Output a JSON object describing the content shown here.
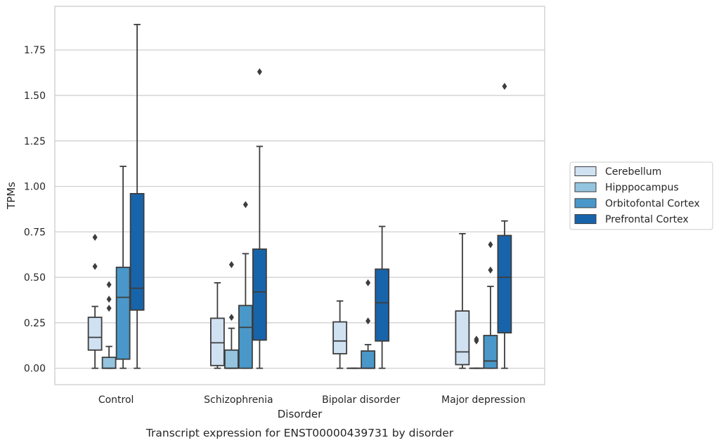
{
  "chart_data": {
    "type": "boxplot",
    "caption": "Transcript expression for ENST00000439731 by disorder",
    "xlabel": "Disorder",
    "ylabel": "TPMs",
    "ylim": [
      -0.09,
      1.99
    ],
    "yticks": [
      0.0,
      0.25,
      0.5,
      0.75,
      1.0,
      1.25,
      1.5,
      1.75
    ],
    "ytick_labels": [
      "0.00",
      "0.25",
      "0.50",
      "0.75",
      "1.00",
      "1.25",
      "1.50",
      "1.75"
    ],
    "grid": true,
    "legend_position": "right",
    "categories": [
      "Control",
      "Schizophrenia",
      "Bipolar disorder",
      "Major depression"
    ],
    "series": [
      {
        "name": "Cerebellum",
        "color": "#d0e1f2",
        "boxes": [
          {
            "whisker_low": 0.0,
            "q1": 0.1,
            "median": 0.17,
            "q3": 0.28,
            "whisker_high": 0.34,
            "outliers": [
              0.72,
              0.56
            ]
          },
          {
            "whisker_low": 0.0,
            "q1": 0.015,
            "median": 0.14,
            "q3": 0.275,
            "whisker_high": 0.47,
            "outliers": []
          },
          {
            "whisker_low": 0.0,
            "q1": 0.08,
            "median": 0.15,
            "q3": 0.255,
            "whisker_high": 0.37,
            "outliers": []
          },
          {
            "whisker_low": 0.0,
            "q1": 0.02,
            "median": 0.09,
            "q3": 0.315,
            "whisker_high": 0.74,
            "outliers": []
          }
        ]
      },
      {
        "name": "Hipppocampus",
        "color": "#94c4df",
        "boxes": [
          {
            "whisker_low": 0.0,
            "q1": 0.0,
            "median": 0.0,
            "q3": 0.06,
            "whisker_high": 0.12,
            "outliers": [
              0.46,
              0.38,
              0.33
            ]
          },
          {
            "whisker_low": 0.0,
            "q1": 0.0,
            "median": 0.0,
            "q3": 0.1,
            "whisker_high": 0.22,
            "outliers": [
              0.57,
              0.28
            ]
          },
          {
            "whisker_low": 0.0,
            "q1": 0.0,
            "median": 0.0,
            "q3": 0.0,
            "whisker_high": 0.0,
            "outliers": []
          },
          {
            "whisker_low": 0.0,
            "q1": 0.0,
            "median": 0.0,
            "q3": 0.0,
            "whisker_high": 0.0,
            "outliers": [
              0.16,
              0.15
            ]
          }
        ]
      },
      {
        "name": "Orbitofontal Cortex",
        "color": "#4a98c9",
        "boxes": [
          {
            "whisker_low": 0.0,
            "q1": 0.05,
            "median": 0.39,
            "q3": 0.555,
            "whisker_high": 1.11,
            "outliers": []
          },
          {
            "whisker_low": 0.0,
            "q1": 0.0,
            "median": 0.225,
            "q3": 0.345,
            "whisker_high": 0.63,
            "outliers": [
              0.9
            ]
          },
          {
            "whisker_low": 0.0,
            "q1": 0.0,
            "median": 0.0,
            "q3": 0.095,
            "whisker_high": 0.13,
            "outliers": [
              0.47,
              0.26
            ]
          },
          {
            "whisker_low": 0.0,
            "q1": 0.0,
            "median": 0.04,
            "q3": 0.18,
            "whisker_high": 0.45,
            "outliers": [
              0.68,
              0.54
            ]
          }
        ]
      },
      {
        "name": "Prefrontal Cortex",
        "color": "#1764ab",
        "boxes": [
          {
            "whisker_low": 0.0,
            "q1": 0.32,
            "median": 0.44,
            "q3": 0.96,
            "whisker_high": 1.89,
            "outliers": []
          },
          {
            "whisker_low": 0.0,
            "q1": 0.155,
            "median": 0.42,
            "q3": 0.655,
            "whisker_high": 1.22,
            "outliers": [
              1.63
            ]
          },
          {
            "whisker_low": 0.0,
            "q1": 0.15,
            "median": 0.36,
            "q3": 0.545,
            "whisker_high": 0.78,
            "outliers": []
          },
          {
            "whisker_low": 0.0,
            "q1": 0.195,
            "median": 0.5,
            "q3": 0.73,
            "whisker_high": 0.81,
            "outliers": [
              1.55
            ]
          }
        ]
      }
    ]
  }
}
